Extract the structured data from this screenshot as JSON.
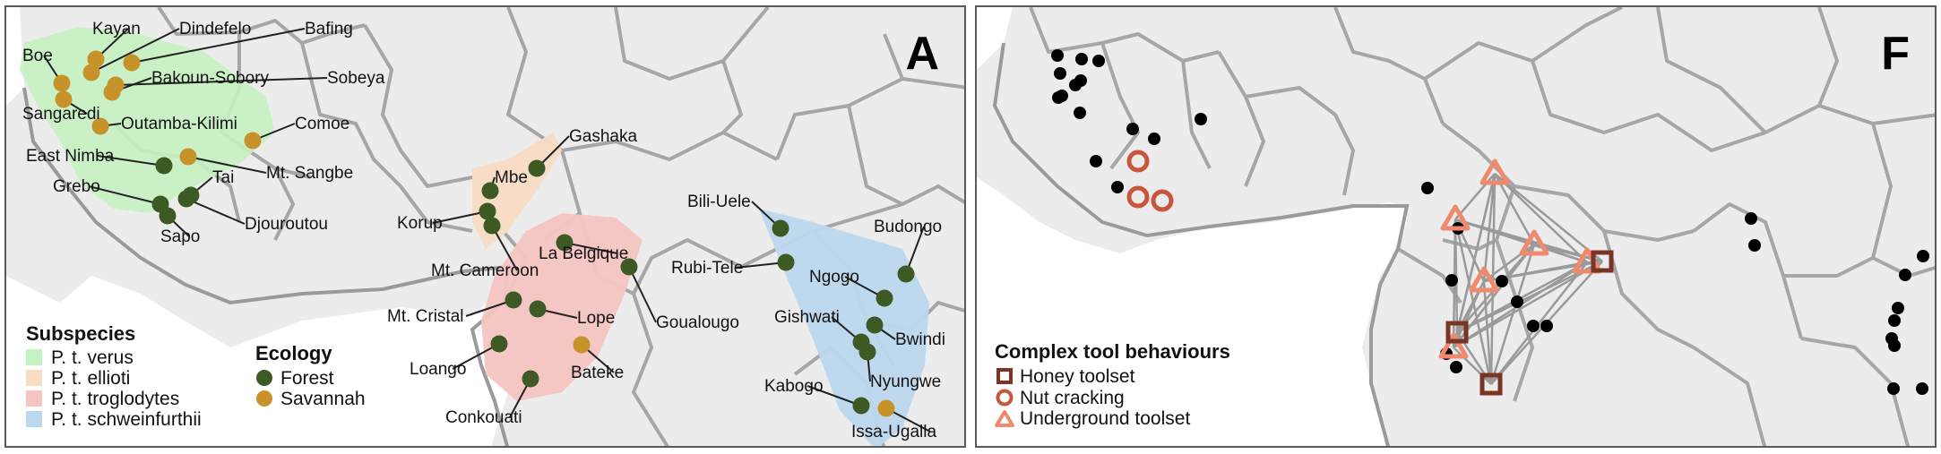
{
  "panelA": {
    "letter": "A",
    "sites": [
      {
        "name": "Kayan",
        "eco": "savannah"
      },
      {
        "name": "Dindefelo",
        "eco": "savannah"
      },
      {
        "name": "Bafing",
        "eco": "savannah"
      },
      {
        "name": "Boe",
        "eco": "savannah"
      },
      {
        "name": "Bakoun-Sobory",
        "eco": "savannah"
      },
      {
        "name": "Sobeya",
        "eco": "savannah"
      },
      {
        "name": "Sangaredi",
        "eco": "savannah"
      },
      {
        "name": "Outamba-Kilimi",
        "eco": "savannah"
      },
      {
        "name": "Comoe",
        "eco": "savannah"
      },
      {
        "name": "East Nimba",
        "eco": "forest"
      },
      {
        "name": "Mt. Sangbe",
        "eco": "savannah"
      },
      {
        "name": "Tai",
        "eco": "forest"
      },
      {
        "name": "Grebo",
        "eco": "forest"
      },
      {
        "name": "Djouroutou",
        "eco": "forest"
      },
      {
        "name": "Sapo",
        "eco": "forest"
      },
      {
        "name": "Gashaka",
        "eco": "forest"
      },
      {
        "name": "Mbe",
        "eco": "forest"
      },
      {
        "name": "Korup",
        "eco": "forest"
      },
      {
        "name": "Mt. Cameroon",
        "eco": "forest"
      },
      {
        "name": "La Belgique",
        "eco": "forest"
      },
      {
        "name": "Goualougo",
        "eco": "forest"
      },
      {
        "name": "Mt. Cristal",
        "eco": "forest"
      },
      {
        "name": "Lope",
        "eco": "forest"
      },
      {
        "name": "Loango",
        "eco": "forest"
      },
      {
        "name": "Bateke",
        "eco": "savannah"
      },
      {
        "name": "Conkouati",
        "eco": "forest"
      },
      {
        "name": "Bili-Uele",
        "eco": "forest"
      },
      {
        "name": "Budongo",
        "eco": "forest"
      },
      {
        "name": "Rubi-Tele",
        "eco": "forest"
      },
      {
        "name": "Ngogo",
        "eco": "forest"
      },
      {
        "name": "Gishwati",
        "eco": "forest"
      },
      {
        "name": "Bwindi",
        "eco": "forest"
      },
      {
        "name": "Nyungwe",
        "eco": "forest"
      },
      {
        "name": "Kabogo",
        "eco": "forest"
      },
      {
        "name": "Issa-Ugalla",
        "eco": "savannah"
      }
    ],
    "legend_subspecies": {
      "title": "Subspecies",
      "items": [
        {
          "label": "P. t. verus",
          "color": "#c6f2c2"
        },
        {
          "label": "P. t. ellioti",
          "color": "#f8dcc4"
        },
        {
          "label": "P. t. troglodytes",
          "color": "#f4c4c2"
        },
        {
          "label": "P. t. schweinfurthii",
          "color": "#bcd8ee"
        }
      ]
    },
    "legend_ecology": {
      "title": "Ecology",
      "items": [
        {
          "label": "Forest",
          "color": "#3d5a25"
        },
        {
          "label": "Savannah",
          "color": "#c8922a"
        }
      ]
    }
  },
  "panelF": {
    "letter": "F",
    "legend": {
      "title": "Complex tool behaviours",
      "items": [
        {
          "label": "Honey toolset",
          "shape": "square",
          "color": "#7a3525"
        },
        {
          "label": "Nut cracking",
          "shape": "circle",
          "color": "#c8553d"
        },
        {
          "label": "Underground toolset",
          "shape": "triangle",
          "color": "#ef8a6f"
        }
      ]
    }
  },
  "colors": {
    "land": "#ececec",
    "border": "#a6a6a6",
    "sea": "#ffffff",
    "forest": "#3d5a25",
    "savannah": "#c8922a",
    "point": "#000000",
    "network": "#9a9a9a"
  }
}
